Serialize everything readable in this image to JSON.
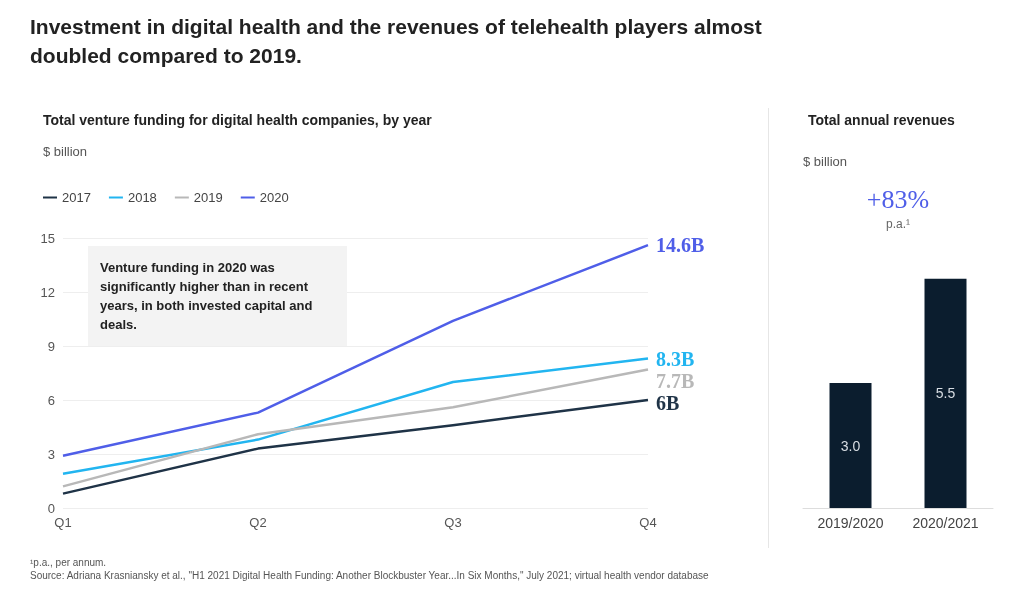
{
  "chart_data": [
    {
      "type": "line",
      "title": "Investment in digital health and the revenues of telehealth players almost doubled compared to 2019.",
      "subtitle": "Total venture funding for digital health companies, by year",
      "ylabel": "$ billion",
      "categories": [
        "Q1",
        "Q2",
        "Q3",
        "Q4"
      ],
      "series": [
        {
          "name": "2017",
          "color": "#1f3347",
          "values": [
            0.8,
            3.3,
            4.6,
            6
          ],
          "value_labels": [
            null,
            null,
            null,
            "6B"
          ]
        },
        {
          "name": "2018",
          "color": "#22b5f0",
          "values": [
            1.9,
            3.8,
            7.0,
            8.3
          ],
          "value_labels": [
            null,
            null,
            null,
            "8.3B"
          ]
        },
        {
          "name": "2019",
          "color": "#b8b8b8",
          "values": [
            1.2,
            4.1,
            5.6,
            7.7
          ],
          "value_labels": [
            null,
            null,
            null,
            "7.7B"
          ]
        },
        {
          "name": "2020",
          "color": "#4f5ee8",
          "values": [
            2.9,
            5.3,
            10.4,
            14.6
          ],
          "value_labels": [
            null,
            null,
            null,
            "14.6B"
          ]
        }
      ],
      "ylim": [
        0,
        15
      ],
      "yticks": [
        0,
        3,
        6,
        9,
        12,
        15
      ],
      "grid": "y",
      "legend": "top left",
      "annotations": [
        "Venture funding in 2020 was significantly higher than in recent years, in both invested capital and deals.",
        "¹p.a., per annum.",
        "Source: Adriana Krasniansky et al., \"H1 2021 Digital Health Funding: Another Blockbuster Year...In Six Months,\" July 2021; virtual health vendor database"
      ]
    },
    {
      "type": "bar",
      "title": "Total annual revenues",
      "ylabel": "$ billion",
      "categories": [
        "2019/2020",
        "2020/2021"
      ],
      "values": [
        3.0,
        5.5
      ],
      "color": "#0b1d2e",
      "value_labels": [
        "3.0",
        "5.5"
      ],
      "annotations": [
        "+83%",
        "p.a.¹"
      ]
    }
  ]
}
